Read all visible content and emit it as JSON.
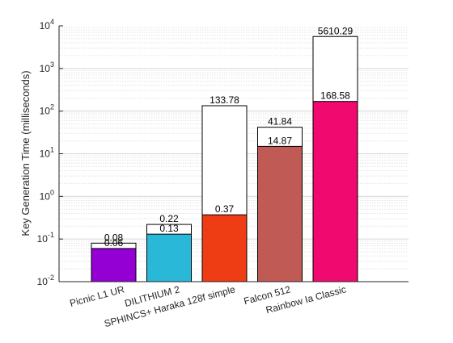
{
  "chart_data": {
    "type": "bar",
    "scale": "log",
    "ylabel": "Key Generation Time (milliseconds)",
    "ylim": [
      0.01,
      10000
    ],
    "grid": true,
    "yticks": [
      {
        "value": 0.01,
        "base": "10",
        "exp": "-2"
      },
      {
        "value": 0.1,
        "base": "10",
        "exp": "-1"
      },
      {
        "value": 1,
        "base": "10",
        "exp": "0"
      },
      {
        "value": 10,
        "base": "10",
        "exp": "1"
      },
      {
        "value": 100,
        "base": "10",
        "exp": "2"
      },
      {
        "value": 1000,
        "base": "10",
        "exp": "3"
      },
      {
        "value": 10000,
        "base": "10",
        "exp": "4"
      }
    ],
    "categories": [
      "Picnic L1 UR",
      "DILITHIUM 2",
      "SPHINCS+ Haraka 128f simple",
      "Falcon 512",
      "Rainbow Ia Classic"
    ],
    "series": [
      {
        "values": [
          0.08,
          0.22,
          133.78,
          41.84,
          5610.29
        ],
        "labels": [
          "0.08",
          "0.22",
          "133.78",
          "41.84",
          "5610.29"
        ],
        "color": "#ffffff"
      },
      {
        "values": [
          0.06,
          0.13,
          0.37,
          14.87,
          168.58
        ],
        "labels": [
          "0.06",
          "0.13",
          "0.37",
          "14.87",
          "168.58"
        ],
        "colors": [
          "#9400d3",
          "#29b8d8",
          "#ee3c14",
          "#c05a55",
          "#f0096e"
        ]
      }
    ]
  }
}
